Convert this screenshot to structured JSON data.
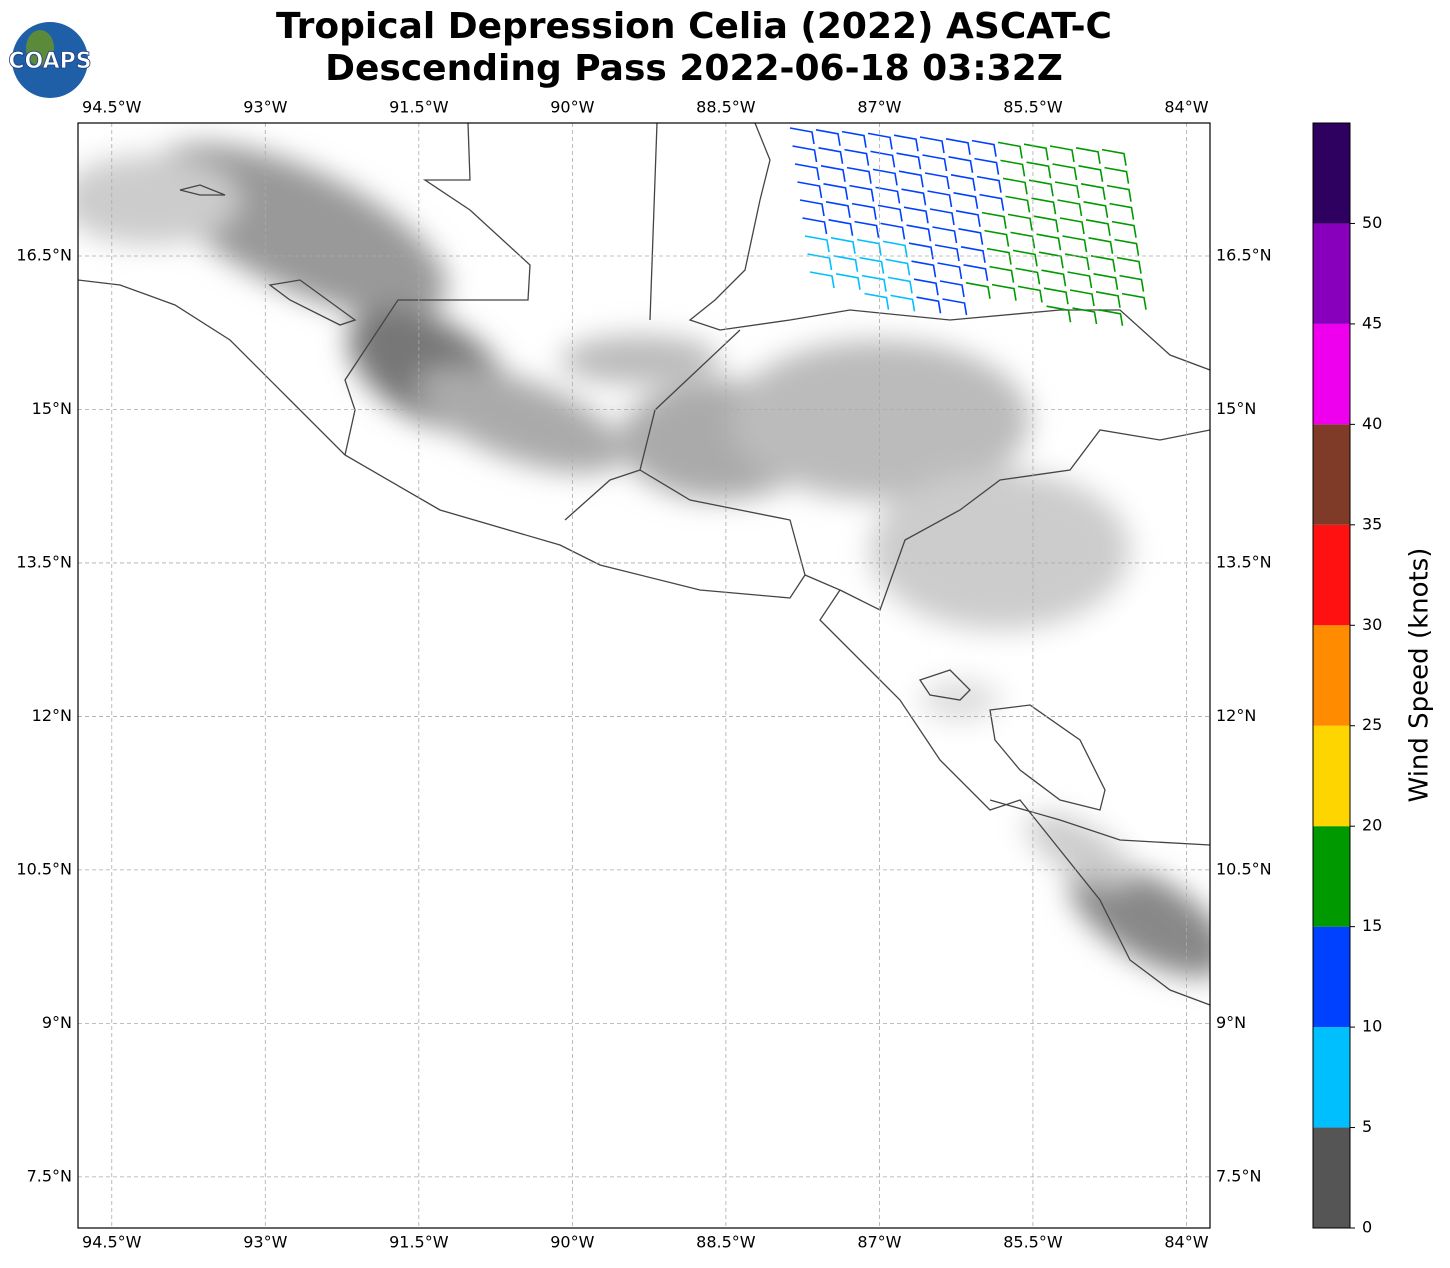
{
  "title": [
    "Tropical Depression Celia (2022) ASCAT-C",
    "Descending Pass 2022-06-18 03:32Z"
  ],
  "logo": "COAPS",
  "map": {
    "lonlim": [
      -94.83,
      -83.77
    ],
    "latlim": [
      7.0,
      17.8
    ],
    "lonticks": [
      {
        "value": -94.5,
        "label": "94.5°W"
      },
      {
        "value": -93,
        "label": "93°W"
      },
      {
        "value": -91.5,
        "label": "91.5°W"
      },
      {
        "value": -90,
        "label": "90°W"
      },
      {
        "value": -88.5,
        "label": "88.5°W"
      },
      {
        "value": -87,
        "label": "87°W"
      },
      {
        "value": -85.5,
        "label": "85.5°W"
      },
      {
        "value": -84,
        "label": "84°W"
      }
    ],
    "latticks": [
      {
        "value": 16.5,
        "label": "16.5°N"
      },
      {
        "value": 15,
        "label": "15°N"
      },
      {
        "value": 13.5,
        "label": "13.5°N"
      },
      {
        "value": 12,
        "label": "12°N"
      },
      {
        "value": 10.5,
        "label": "10.5°N"
      },
      {
        "value": 9,
        "label": "9°N"
      },
      {
        "value": 7.5,
        "label": "7.5°N"
      }
    ],
    "grid": true
  },
  "colorbar": {
    "label": "Wind Speed (knots)",
    "lim": [
      0,
      55
    ],
    "bounds": [
      0,
      5,
      10,
      15,
      20,
      25,
      30,
      35,
      40,
      45,
      50,
      55
    ],
    "colors": [
      "#555555",
      "#00bfff",
      "#0040ff",
      "#009900",
      "#ffd500",
      "#ff8c00",
      "#ff1111",
      "#7f3b28",
      "#ee00ee",
      "#8800bb",
      "#2e005f"
    ],
    "ticks": [
      0,
      5,
      10,
      15,
      20,
      25,
      30,
      35,
      40,
      45,
      50
    ]
  }
}
